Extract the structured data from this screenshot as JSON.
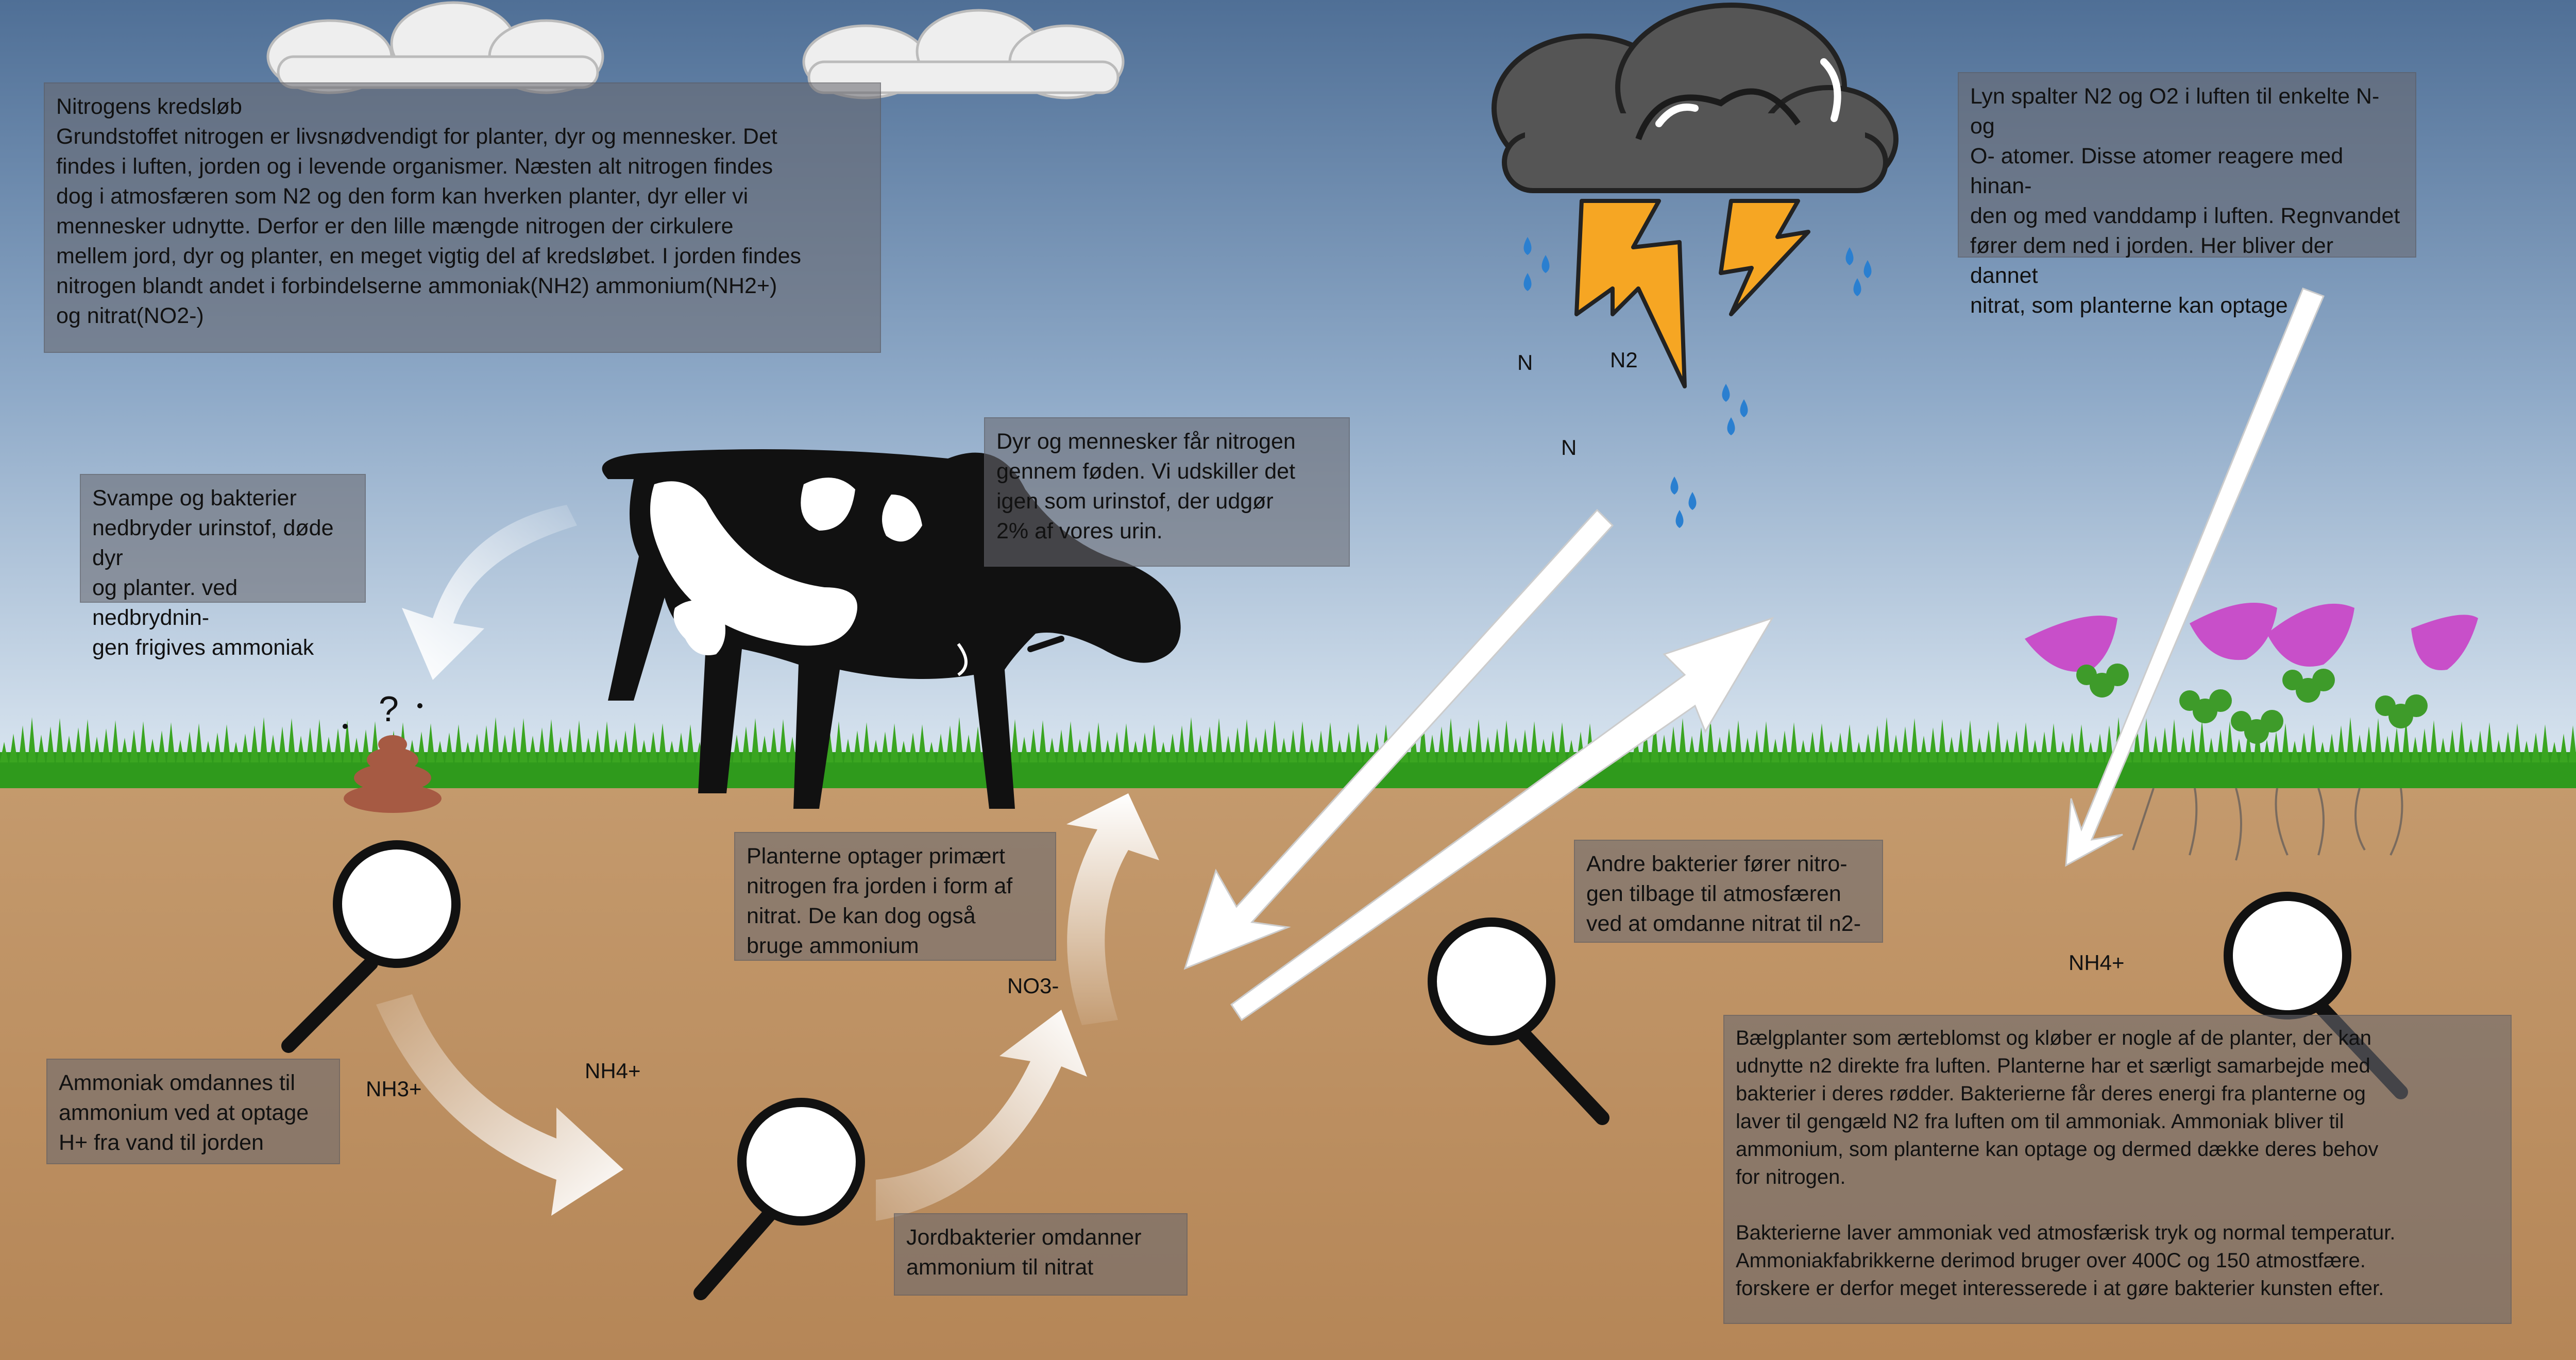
{
  "colors": {
    "sky_top": "#4f6f96",
    "sky_bottom": "#d8e5f0",
    "soil": "#bf9466",
    "grass": "#2f9a1c",
    "cloud_dark": "#555555",
    "lightning": "#f6a623",
    "rain": "#2a7fd0",
    "flower": "#c84fc9"
  },
  "info_boxes": {
    "intro": "Nitrogens kredsløb\nGrundstoffet nitrogen er livsnødvendigt for planter, dyr og mennesker. Det\nfindes i luften, jorden og i levende organismer. Næsten alt nitrogen findes\ndog i atmosfæren som N2 og den form kan hverken planter, dyr eller vi\nmennesker udnytte. Derfor er den lille mængde nitrogen der cirkulere\nmellem jord, dyr og planter, en meget vigtig del af kredsløbet. I jorden findes\nnitrogen blandt andet i forbindelserne ammoniak(NH2) ammonium(NH2+)\nog nitrat(NO2-)",
    "lightning": "Lyn spalter N2 og O2 i luften til enkelte N- og\nO- atomer. Disse atomer reagere med hinan-\nden og med vanddamp i luften. Regnvandet\nfører dem ned i jorden. Her bliver der dannet\nnitrat, som planterne kan optage",
    "fungi": "Svampe og bakterier\nnedbryder urinstof, døde dyr\nog planter. ved nedbrydnin-\ngen frigives ammoniak",
    "animals": "Dyr og mennesker får nitrogen\ngennem føden. Vi udskiller det\nigen som urinstof, der udgør\n2% af vores urin.",
    "plants": "Planterne optager primært\nnitrogen fra jorden i form af\nnitrat. De kan dog også\nbruge ammonium",
    "denitrify": "Andre bakterier fører nitro-\ngen tilbage til atmosfæren\nved at omdanne nitrat til n2-",
    "ammonia": "Ammoniak omdannes til\nammonium ved at optage\nH+ fra vand til jorden",
    "soil_bacteria": "Jordbakterier  omdanner\nammonium til nitrat",
    "legumes": "Bælgplanter som ærteblomst og kløber er nogle af de planter, der kan\nudnytte n2 direkte fra luften. Planterne har et særligt samarbejde med\nbakterier i deres rødder. Bakterierne får deres energi fra planterne og\nlaver til gengæld N2 fra luften om til ammoniak. Ammoniak bliver til\nammonium, som planterne kan optage og dermed dække deres behov\nfor nitrogen.\n\nBakterierne laver ammoniak ved atmosfærisk tryk og normal temperatur.\nAmmoniakfabrikkerne derimod bruger over 400C og 150 atmostfære.\nforskere er derfor meget interesserede i at gøre bakterier kunsten efter."
  },
  "labels": {
    "n_1": "N",
    "n2": "N2",
    "n_2": "N",
    "nh3": "NH3+",
    "nh4_left": "NH4+",
    "no3": "NO3-",
    "nh4_right": "NH4+"
  }
}
